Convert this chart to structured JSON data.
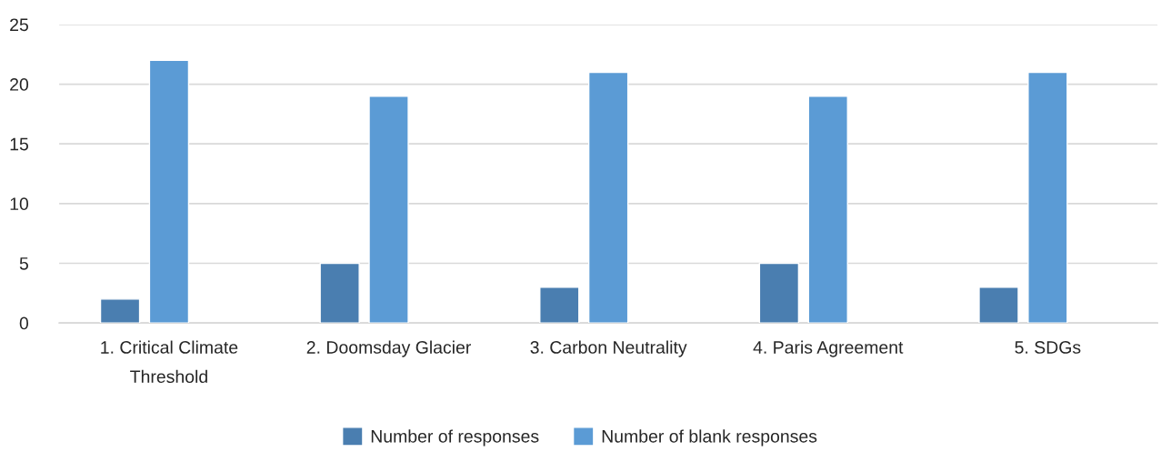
{
  "chart_data": {
    "type": "bar",
    "categories": [
      "1. Critical Climate\nThreshold",
      "2. Doomsday Glacier",
      "3. Carbon Neutrality",
      "4. Paris Agreement",
      "5. SDGs"
    ],
    "series": [
      {
        "name": "Number of responses",
        "color": "#4a7eb0",
        "values": [
          2,
          5,
          3,
          5,
          3
        ]
      },
      {
        "name": "Number of blank responses",
        "color": "#5b9bd5",
        "values": [
          22,
          19,
          21,
          19,
          21
        ]
      }
    ],
    "ylim": [
      0,
      25
    ],
    "yticks": [
      0,
      5,
      10,
      15,
      20,
      25
    ],
    "grid": "y",
    "legend": "bottom"
  }
}
